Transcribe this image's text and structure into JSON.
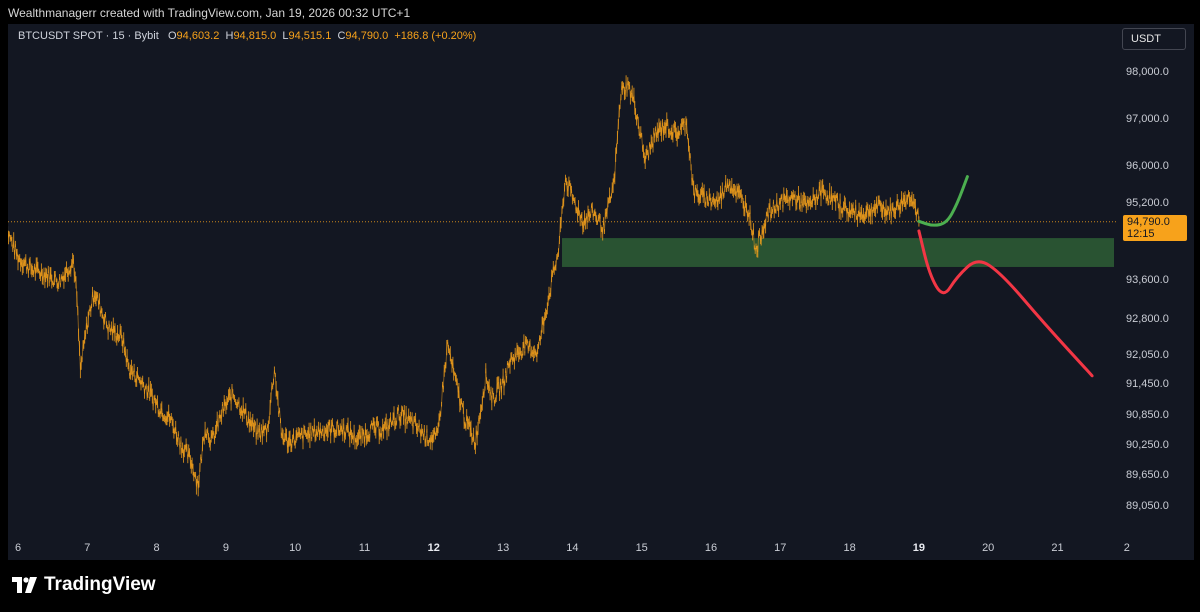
{
  "header": {
    "credit": "Wealthmanagerr created with TradingView.com, Jan 19, 2026 00:32 UTC+1"
  },
  "legend": {
    "symbol": "BTCUSDT SPOT · 15 · Bybit",
    "open_label": "O",
    "open": "94,603.2",
    "high_label": "H",
    "high": "94,815.0",
    "low_label": "L",
    "low": "94,515.1",
    "close_label": "C",
    "close": "94,790.0",
    "change": "+186.8 (+0.20%)"
  },
  "currency": "USDT",
  "price_badge": {
    "price": "94,790.0",
    "countdown": "12:15"
  },
  "footer": {
    "brand": "TradingView"
  },
  "colors": {
    "background": "#131722",
    "candles": "#f7a21b",
    "zone": "#2e5e35",
    "bull_path": "#4caf50",
    "bear_path": "#f23645"
  },
  "chart_data": {
    "type": "line",
    "title": "",
    "xlabel": "",
    "ylabel": "",
    "x_ticks": [
      {
        "label": "6",
        "day": 6,
        "bold": false
      },
      {
        "label": "7",
        "day": 7,
        "bold": false
      },
      {
        "label": "8",
        "day": 8,
        "bold": false
      },
      {
        "label": "9",
        "day": 9,
        "bold": false
      },
      {
        "label": "10",
        "day": 10,
        "bold": false
      },
      {
        "label": "11",
        "day": 11,
        "bold": false
      },
      {
        "label": "12",
        "day": 12,
        "bold": true
      },
      {
        "label": "13",
        "day": 13,
        "bold": false
      },
      {
        "label": "14",
        "day": 14,
        "bold": false
      },
      {
        "label": "15",
        "day": 15,
        "bold": false
      },
      {
        "label": "16",
        "day": 16,
        "bold": false
      },
      {
        "label": "17",
        "day": 17,
        "bold": false
      },
      {
        "label": "18",
        "day": 18,
        "bold": false
      },
      {
        "label": "19",
        "day": 19,
        "bold": true
      },
      {
        "label": "20",
        "day": 20,
        "bold": false
      },
      {
        "label": "21",
        "day": 21,
        "bold": false
      },
      {
        "label": "2",
        "day": 22,
        "bold": false
      }
    ],
    "y_ticks": [
      {
        "label": "98,000.0",
        "value": 98000
      },
      {
        "label": "97,000.0",
        "value": 97000
      },
      {
        "label": "96,000.0",
        "value": 96000
      },
      {
        "label": "95,200.0",
        "value": 95200
      },
      {
        "label": "93,600.0",
        "value": 93600
      },
      {
        "label": "92,800.0",
        "value": 92800
      },
      {
        "label": "92,050.0",
        "value": 92050
      },
      {
        "label": "91,450.0",
        "value": 91450
      },
      {
        "label": "90,850.0",
        "value": 90850
      },
      {
        "label": "90,250.0",
        "value": 90250
      },
      {
        "label": "89,650.0",
        "value": 89650
      },
      {
        "label": "89,050.0",
        "value": 89050
      }
    ],
    "current_price": 94790,
    "price_series": {
      "name": "BTCUSDT",
      "points": [
        [
          5.8,
          94750
        ],
        [
          6.0,
          94050
        ],
        [
          6.2,
          93800
        ],
        [
          6.4,
          93700
        ],
        [
          6.6,
          93550
        ],
        [
          6.8,
          94000
        ],
        [
          6.85,
          93200
        ],
        [
          6.9,
          91700
        ],
        [
          7.0,
          92700
        ],
        [
          7.1,
          93350
        ],
        [
          7.3,
          92600
        ],
        [
          7.5,
          92400
        ],
        [
          7.6,
          91750
        ],
        [
          7.8,
          91450
        ],
        [
          8.0,
          91050
        ],
        [
          8.2,
          90750
        ],
        [
          8.35,
          90250
        ],
        [
          8.5,
          89900
        ],
        [
          8.6,
          89450
        ],
        [
          8.7,
          90600
        ],
        [
          8.8,
          90300
        ],
        [
          8.95,
          90900
        ],
        [
          9.1,
          91250
        ],
        [
          9.3,
          90800
        ],
        [
          9.45,
          90450
        ],
        [
          9.6,
          90550
        ],
        [
          9.7,
          91750
        ],
        [
          9.8,
          90450
        ],
        [
          9.9,
          90300
        ],
        [
          10.1,
          90400
        ],
        [
          10.3,
          90500
        ],
        [
          10.5,
          90550
        ],
        [
          10.7,
          90550
        ],
        [
          10.9,
          90350
        ],
        [
          11.1,
          90550
        ],
        [
          11.3,
          90550
        ],
        [
          11.5,
          90850
        ],
        [
          11.7,
          90650
        ],
        [
          11.9,
          90400
        ],
        [
          12.05,
          90350
        ],
        [
          12.2,
          92250
        ],
        [
          12.3,
          91550
        ],
        [
          12.45,
          90750
        ],
        [
          12.6,
          90300
        ],
        [
          12.75,
          91600
        ],
        [
          12.85,
          91150
        ],
        [
          13.0,
          91450
        ],
        [
          13.1,
          91900
        ],
        [
          13.3,
          92200
        ],
        [
          13.5,
          92100
        ],
        [
          13.65,
          93200
        ],
        [
          13.8,
          94200
        ],
        [
          13.9,
          95700
        ],
        [
          14.0,
          95300
        ],
        [
          14.15,
          94800
        ],
        [
          14.3,
          95000
        ],
        [
          14.45,
          94650
        ],
        [
          14.6,
          95600
        ],
        [
          14.7,
          97550
        ],
        [
          14.8,
          97700
        ],
        [
          14.9,
          97300
        ],
        [
          15.05,
          96100
        ],
        [
          15.2,
          96650
        ],
        [
          15.35,
          96850
        ],
        [
          15.5,
          96650
        ],
        [
          15.65,
          96900
        ],
        [
          15.75,
          95400
        ],
        [
          15.9,
          95300
        ],
        [
          16.1,
          95200
        ],
        [
          16.25,
          95650
        ],
        [
          16.4,
          95350
        ],
        [
          16.55,
          95000
        ],
        [
          16.65,
          94200
        ],
        [
          16.8,
          94900
        ],
        [
          17.0,
          95200
        ],
        [
          17.2,
          95300
        ],
        [
          17.4,
          95100
        ],
        [
          17.6,
          95450
        ],
        [
          17.8,
          95200
        ],
        [
          18.0,
          95000
        ],
        [
          18.2,
          94950
        ],
        [
          18.4,
          95100
        ],
        [
          18.6,
          95000
        ],
        [
          18.8,
          95250
        ],
        [
          18.9,
          95350
        ],
        [
          19.0,
          94790
        ]
      ]
    },
    "demand_zone": {
      "from_day": 13.85,
      "y_top": 94450,
      "y_bottom": 93850
    },
    "projections": [
      {
        "name": "",
        "color": "#4caf50",
        "points": [
          [
            19.0,
            94800
          ],
          [
            19.2,
            94700
          ],
          [
            19.4,
            94760
          ],
          [
            19.55,
            95150
          ],
          [
            19.7,
            95750
          ]
        ]
      },
      {
        "name": "",
        "color": "#f23645",
        "points": [
          [
            19.0,
            94600
          ],
          [
            19.15,
            93700
          ],
          [
            19.35,
            93200
          ],
          [
            19.55,
            93650
          ],
          [
            19.85,
            94050
          ],
          [
            20.2,
            93700
          ],
          [
            20.8,
            92700
          ],
          [
            21.5,
            91600
          ]
        ]
      }
    ],
    "grid": false,
    "legend": "none"
  }
}
